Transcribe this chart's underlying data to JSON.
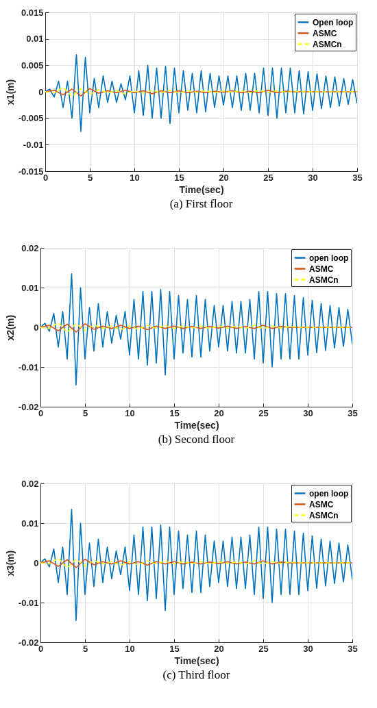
{
  "chart_data": [
    {
      "type": "line",
      "title": "(a)   First floor",
      "xlabel": "Time(sec)",
      "ylabel": "x1(m)",
      "xlim": [
        0,
        35
      ],
      "xticks": [
        0,
        5,
        10,
        15,
        20,
        25,
        30,
        35
      ],
      "ylim": [
        -0.015,
        0.015
      ],
      "yticks": [
        -0.015,
        -0.01,
        -0.005,
        0,
        0.005,
        0.01,
        0.015
      ],
      "grid": true,
      "legend": "top right",
      "marker": "none",
      "x": [
        0,
        0.5,
        1,
        1.5,
        2,
        2.5,
        3,
        3.5,
        4,
        4.5,
        5,
        5.5,
        6,
        6.5,
        7,
        7.5,
        8,
        8.5,
        9,
        9.5,
        10,
        10.5,
        11,
        11.5,
        12,
        12.5,
        13,
        13.5,
        14,
        14.5,
        15,
        15.5,
        16,
        16.5,
        17,
        17.5,
        18,
        18.5,
        19,
        19.5,
        20,
        20.5,
        21,
        21.5,
        22,
        22.5,
        23,
        23.5,
        24,
        24.5,
        25,
        25.5,
        26,
        26.5,
        27,
        27.5,
        28,
        28.5,
        29,
        29.5,
        30,
        30.5,
        31,
        31.5,
        32,
        32.5,
        33,
        33.5,
        34,
        34.5,
        35
      ],
      "series": [
        {
          "name": "Open loop",
          "color": "#0072bd",
          "line_style": "solid",
          "values": [
            0,
            0.0005,
            -0.001,
            0.002,
            -0.003,
            0.002,
            -0.005,
            0.007,
            -0.0075,
            0.0065,
            -0.004,
            0.0025,
            -0.003,
            0.003,
            -0.002,
            0.002,
            -0.002,
            0.0015,
            -0.0015,
            0.003,
            -0.004,
            0.004,
            -0.0045,
            0.005,
            -0.005,
            0.0045,
            -0.005,
            0.0048,
            -0.006,
            0.0045,
            -0.004,
            0.004,
            -0.0035,
            0.0035,
            -0.004,
            0.004,
            -0.0038,
            0.0035,
            -0.003,
            0.003,
            -0.0025,
            0.003,
            -0.003,
            0.003,
            -0.0035,
            0.0035,
            -0.0035,
            0.0035,
            -0.004,
            0.0045,
            -0.0045,
            0.0045,
            -0.005,
            0.0045,
            -0.004,
            0.0045,
            -0.004,
            0.004,
            -0.0042,
            0.0038,
            -0.0035,
            0.0034,
            -0.0032,
            0.003,
            -0.003,
            0.0028,
            -0.0027,
            0.0025,
            -0.0024,
            0.0023,
            -0.0022
          ]
        },
        {
          "name": "ASMC",
          "color": "#d95319",
          "line_style": "solid",
          "x": [
            0,
            1,
            2,
            3,
            4,
            5,
            6,
            7,
            8,
            9,
            10,
            11,
            12,
            13,
            14,
            15,
            16,
            17,
            18,
            19,
            20,
            21,
            22,
            23,
            24,
            25,
            26,
            27,
            28,
            29,
            30,
            31,
            32,
            33,
            34,
            35
          ],
          "values": [
            0,
            0.0003,
            -0.0006,
            0.0005,
            -0.0008,
            0.0006,
            -0.0003,
            0.0002,
            -0.0002,
            0.0003,
            -0.0002,
            0.0002,
            -0.0004,
            0.0002,
            -0.0002,
            0.0002,
            -0.0002,
            0.0001,
            -0.0002,
            0.0001,
            -0.0001,
            0.0002,
            -0.0002,
            0.0001,
            -0.0002,
            0.0003,
            -0.0002,
            0.0001,
            0,
            0,
            0,
            0,
            0,
            0,
            0,
            0
          ]
        },
        {
          "name": "ASMCn",
          "color": "#ffff00",
          "line_style": "dashed",
          "x": [
            0,
            1,
            2,
            3,
            4,
            5,
            6,
            7,
            8,
            9,
            10,
            11,
            12,
            13,
            14,
            15,
            16,
            17,
            18,
            19,
            20,
            21,
            22,
            23,
            24,
            25,
            26,
            27,
            28,
            29,
            30,
            31,
            32,
            33,
            34,
            35
          ],
          "values": [
            0,
            -0.0002,
            0.0008,
            -0.0009,
            0.0006,
            -0.0005,
            0.0004,
            -0.0002,
            0.0002,
            -0.0004,
            0.0002,
            -0.0003,
            0.0003,
            -0.0002,
            0.0003,
            -0.0002,
            0.0002,
            -0.0001,
            0.0002,
            -0.0002,
            0.0002,
            -0.0001,
            0.0002,
            -0.0002,
            0.0003,
            -0.0002,
            0.0002,
            -0.0001,
            0.0001,
            0,
            0,
            0,
            0,
            0,
            0,
            0
          ]
        }
      ]
    },
    {
      "type": "line",
      "title": "(b)   Second floor",
      "xlabel": "Time(sec)",
      "ylabel": "x2(m)",
      "xlim": [
        0,
        35
      ],
      "xticks": [
        0,
        5,
        10,
        15,
        20,
        25,
        30,
        35
      ],
      "ylim": [
        -0.02,
        0.02
      ],
      "yticks": [
        -0.02,
        -0.01,
        0,
        0.01,
        0.02
      ],
      "grid": true,
      "legend": "top right",
      "marker": "none",
      "x": [
        0,
        0.5,
        1,
        1.5,
        2,
        2.5,
        3,
        3.5,
        4,
        4.5,
        5,
        5.5,
        6,
        6.5,
        7,
        7.5,
        8,
        8.5,
        9,
        9.5,
        10,
        10.5,
        11,
        11.5,
        12,
        12.5,
        13,
        13.5,
        14,
        14.5,
        15,
        15.5,
        16,
        16.5,
        17,
        17.5,
        18,
        18.5,
        19,
        19.5,
        20,
        20.5,
        21,
        21.5,
        22,
        22.5,
        23,
        23.5,
        24,
        24.5,
        25,
        25.5,
        26,
        26.5,
        27,
        27.5,
        28,
        28.5,
        29,
        29.5,
        30,
        30.5,
        31,
        31.5,
        32,
        32.5,
        33,
        33.5,
        34,
        34.5,
        35
      ],
      "series": [
        {
          "name": "open loop",
          "color": "#0072bd",
          "line_style": "solid",
          "values": [
            0,
            0.001,
            -0.001,
            0.0035,
            -0.005,
            0.004,
            -0.008,
            0.0135,
            -0.0145,
            0.01,
            -0.008,
            0.005,
            -0.006,
            0.006,
            -0.005,
            0.004,
            -0.004,
            0.003,
            -0.003,
            0.004,
            -0.007,
            0.007,
            -0.008,
            0.009,
            -0.0095,
            0.009,
            -0.009,
            0.0095,
            -0.012,
            0.009,
            -0.008,
            0.008,
            -0.0065,
            0.007,
            -0.0075,
            0.008,
            -0.0075,
            0.007,
            -0.006,
            0.0055,
            -0.005,
            0.0055,
            -0.006,
            0.0065,
            -0.0065,
            0.0065,
            -0.0065,
            0.007,
            -0.008,
            0.009,
            -0.009,
            0.009,
            -0.01,
            0.0085,
            -0.008,
            0.0085,
            -0.008,
            0.008,
            -0.008,
            0.0075,
            -0.007,
            0.0068,
            -0.0064,
            0.006,
            -0.0058,
            0.0055,
            -0.0052,
            0.005,
            -0.0048,
            0.0045,
            -0.0042
          ]
        },
        {
          "name": "ASMC",
          "color": "#d95319",
          "line_style": "solid",
          "x": [
            0,
            1,
            2,
            3,
            4,
            5,
            6,
            7,
            8,
            9,
            10,
            11,
            12,
            13,
            14,
            15,
            16,
            17,
            18,
            19,
            20,
            21,
            22,
            23,
            24,
            25,
            26,
            27,
            28,
            29,
            30,
            31,
            32,
            33,
            34,
            35
          ],
          "values": [
            0,
            0.0005,
            -0.0009,
            0.0008,
            -0.0012,
            0.0009,
            -0.0005,
            0.0003,
            -0.0003,
            0.0005,
            -0.0003,
            0.0003,
            -0.0006,
            0.0003,
            -0.0003,
            0.0003,
            -0.0003,
            0.0002,
            -0.0003,
            0.0002,
            -0.0002,
            0.0003,
            -0.0003,
            0.0002,
            -0.0003,
            0.0005,
            -0.0003,
            0.0002,
            0,
            0,
            0,
            0,
            0,
            0,
            0,
            0
          ]
        },
        {
          "name": "ASMCn",
          "color": "#ffff00",
          "line_style": "dashed",
          "x": [
            0,
            1,
            2,
            3,
            4,
            5,
            6,
            7,
            8,
            9,
            10,
            11,
            12,
            13,
            14,
            15,
            16,
            17,
            18,
            19,
            20,
            21,
            22,
            23,
            24,
            25,
            26,
            27,
            28,
            29,
            30,
            31,
            32,
            33,
            34,
            35
          ],
          "values": [
            0,
            -0.0003,
            0.0012,
            -0.0013,
            0.0009,
            -0.0008,
            0.0006,
            -0.0003,
            0.0003,
            -0.0006,
            0.0003,
            -0.0005,
            0.0005,
            -0.0003,
            0.0005,
            -0.0003,
            0.0003,
            -0.0002,
            0.0003,
            -0.0003,
            0.0003,
            -0.0002,
            0.0003,
            -0.0003,
            0.0005,
            -0.0003,
            0.0003,
            -0.0002,
            0.0002,
            0,
            0,
            0,
            0,
            0,
            0,
            0
          ]
        }
      ]
    },
    {
      "type": "line",
      "title": "(c) Third floor",
      "xlabel": "Time(sec)",
      "ylabel": "x3(m)",
      "xlim": [
        0,
        35
      ],
      "xticks": [
        0,
        5,
        10,
        15,
        20,
        25,
        30,
        35
      ],
      "ylim": [
        -0.02,
        0.02
      ],
      "yticks": [
        -0.02,
        -0.01,
        0,
        0.01,
        0.02
      ],
      "grid": true,
      "legend": "top right",
      "marker": "none",
      "x": [
        0,
        0.5,
        1,
        1.5,
        2,
        2.5,
        3,
        3.5,
        4,
        4.5,
        5,
        5.5,
        6,
        6.5,
        7,
        7.5,
        8,
        8.5,
        9,
        9.5,
        10,
        10.5,
        11,
        11.5,
        12,
        12.5,
        13,
        13.5,
        14,
        14.5,
        15,
        15.5,
        16,
        16.5,
        17,
        17.5,
        18,
        18.5,
        19,
        19.5,
        20,
        20.5,
        21,
        21.5,
        22,
        22.5,
        23,
        23.5,
        24,
        24.5,
        25,
        25.5,
        26,
        26.5,
        27,
        27.5,
        28,
        28.5,
        29,
        29.5,
        30,
        30.5,
        31,
        31.5,
        32,
        32.5,
        33,
        33.5,
        34,
        34.5,
        35
      ],
      "series": [
        {
          "name": "open loop",
          "color": "#0072bd",
          "line_style": "solid",
          "values": [
            0,
            0.001,
            -0.001,
            0.0035,
            -0.005,
            0.004,
            -0.008,
            0.0135,
            -0.0145,
            0.01,
            -0.008,
            0.005,
            -0.006,
            0.006,
            -0.005,
            0.004,
            -0.004,
            0.003,
            -0.003,
            0.004,
            -0.007,
            0.007,
            -0.008,
            0.009,
            -0.0095,
            0.009,
            -0.009,
            0.0095,
            -0.012,
            0.009,
            -0.008,
            0.008,
            -0.0065,
            0.007,
            -0.0075,
            0.008,
            -0.0075,
            0.007,
            -0.006,
            0.0055,
            -0.005,
            0.0055,
            -0.006,
            0.0065,
            -0.0065,
            0.0065,
            -0.0065,
            0.007,
            -0.008,
            0.009,
            -0.009,
            0.009,
            -0.01,
            0.0085,
            -0.008,
            0.0085,
            -0.008,
            0.008,
            -0.008,
            0.0075,
            -0.007,
            0.0068,
            -0.0064,
            0.006,
            -0.0058,
            0.0055,
            -0.0052,
            0.005,
            -0.0048,
            0.0045,
            -0.0042
          ]
        },
        {
          "name": "ASMC",
          "color": "#d95319",
          "line_style": "solid",
          "x": [
            0,
            1,
            2,
            3,
            4,
            5,
            6,
            7,
            8,
            9,
            10,
            11,
            12,
            13,
            14,
            15,
            16,
            17,
            18,
            19,
            20,
            21,
            22,
            23,
            24,
            25,
            26,
            27,
            28,
            29,
            30,
            31,
            32,
            33,
            34,
            35
          ],
          "values": [
            0,
            0.0005,
            -0.0009,
            0.0008,
            -0.0012,
            0.0009,
            -0.0005,
            0.0003,
            -0.0003,
            0.0005,
            -0.0003,
            0.0003,
            -0.0006,
            0.0003,
            -0.0003,
            0.0003,
            -0.0003,
            0.0002,
            -0.0003,
            0.0002,
            -0.0002,
            0.0003,
            -0.0003,
            0.0002,
            -0.0003,
            0.0005,
            -0.0003,
            0.0002,
            0,
            0,
            0,
            0,
            0,
            0,
            0,
            0
          ]
        },
        {
          "name": "ASMCn",
          "color": "#ffff00",
          "line_style": "dashed",
          "x": [
            0,
            1,
            2,
            3,
            4,
            5,
            6,
            7,
            8,
            9,
            10,
            11,
            12,
            13,
            14,
            15,
            16,
            17,
            18,
            19,
            20,
            21,
            22,
            23,
            24,
            25,
            26,
            27,
            28,
            29,
            30,
            31,
            32,
            33,
            34,
            35
          ],
          "values": [
            0,
            -0.0003,
            0.0012,
            -0.0013,
            0.0009,
            -0.0008,
            0.0006,
            -0.0003,
            0.0003,
            -0.0006,
            0.0003,
            -0.0005,
            0.0005,
            -0.0003,
            0.0005,
            -0.0003,
            0.0003,
            -0.0002,
            0.0003,
            -0.0003,
            0.0003,
            -0.0002,
            0.0003,
            -0.0003,
            0.0005,
            -0.0003,
            0.0003,
            -0.0002,
            0.0002,
            0,
            0,
            0,
            0,
            0,
            0,
            0
          ]
        }
      ]
    }
  ]
}
